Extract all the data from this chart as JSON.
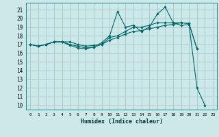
{
  "title": "",
  "xlabel": "Humidex (Indice chaleur)",
  "ylabel": "",
  "bg_color": "#cce8e8",
  "grid_color": "#aacccc",
  "line_color": "#006666",
  "xlim": [
    -0.5,
    23.5
  ],
  "ylim": [
    9.5,
    21.8
  ],
  "xticks": [
    0,
    1,
    2,
    3,
    4,
    5,
    6,
    7,
    8,
    9,
    10,
    11,
    12,
    13,
    14,
    15,
    16,
    17,
    18,
    19,
    20,
    21,
    22,
    23
  ],
  "yticks": [
    10,
    11,
    12,
    13,
    14,
    15,
    16,
    17,
    18,
    19,
    20,
    21
  ],
  "line1": [
    17.0,
    16.8,
    17.0,
    17.3,
    17.3,
    16.9,
    16.6,
    16.5,
    16.7,
    17.2,
    18.0,
    20.8,
    19.0,
    19.2,
    18.5,
    19.0,
    20.5,
    21.3,
    19.5,
    19.2,
    19.3,
    12.0,
    10.0,
    null
  ],
  "line2": [
    17.0,
    16.8,
    17.0,
    17.3,
    17.3,
    17.3,
    17.0,
    16.8,
    16.9,
    17.0,
    17.5,
    17.8,
    18.2,
    18.5,
    18.6,
    18.8,
    19.0,
    19.2,
    19.3,
    19.5,
    19.4,
    16.5,
    null,
    null
  ],
  "line3": [
    17.0,
    16.8,
    17.0,
    17.3,
    17.3,
    17.0,
    16.8,
    16.6,
    16.7,
    17.0,
    17.8,
    18.0,
    18.5,
    19.0,
    19.0,
    19.2,
    19.5,
    19.5,
    19.5,
    19.5,
    19.4,
    16.5,
    null,
    null
  ]
}
